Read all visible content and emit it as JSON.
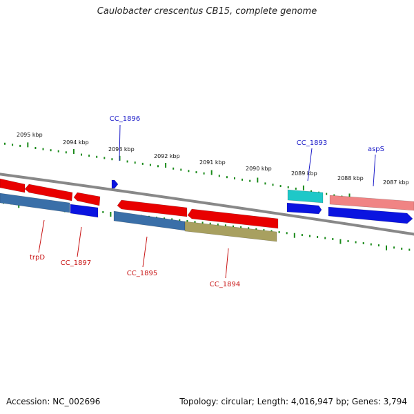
{
  "title": "Caulobacter crescentus CB15, complete genome",
  "footer": {
    "accession": "Accession: NC_002696",
    "genome_info": "Topology: circular; Length: 4,016,947 bp; Genes: 3,794"
  },
  "colors": {
    "forward_cds": "#e80000",
    "forward_cds_light": "#f08484",
    "forward_cds_cyan": "#1ec8c8",
    "reverse_cds": "#0a14e0",
    "reverse_cds_steel": "#3a6fa8",
    "reverse_cds_olive": "#a8a060",
    "backbone": "#888888",
    "tick": "#1a8a1a",
    "label_forward": "#1a1ac8",
    "label_reverse": "#c81414"
  },
  "scale": {
    "unit": "kbp",
    "labels": [
      "2095 kbp",
      "2094 kbp",
      "2093 kbp",
      "2092 kbp",
      "2091 kbp",
      "2090 kbp",
      "2089 kbp",
      "2088 kbp",
      "2087 kbp"
    ]
  },
  "genes": [
    {
      "label": "CC_1896",
      "strand": "forward"
    },
    {
      "label": "CC_1893",
      "strand": "forward"
    },
    {
      "label": "aspS",
      "strand": "forward"
    },
    {
      "label": "trpD",
      "strand": "reverse"
    },
    {
      "label": "CC_1897",
      "strand": "reverse"
    },
    {
      "label": "CC_1895",
      "strand": "reverse"
    },
    {
      "label": "CC_1894",
      "strand": "reverse"
    }
  ]
}
